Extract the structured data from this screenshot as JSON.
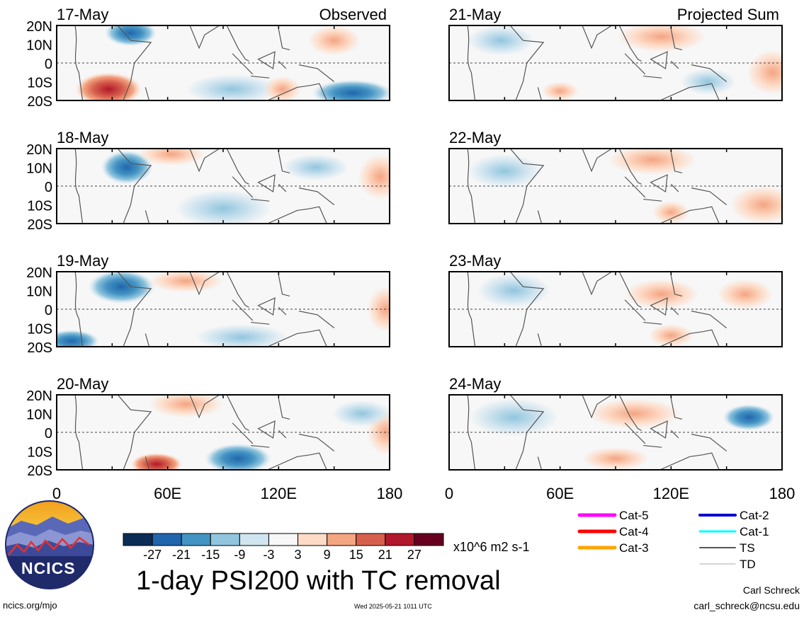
{
  "chart_data": {
    "type": "heatmap",
    "title": "1-day PSI200 with TC removal",
    "units": "x10^6 m2 s-1",
    "column_labels": [
      "Observed",
      "Projected Sum"
    ],
    "x_ticks": [
      "0",
      "60E",
      "120E",
      "180"
    ],
    "y_ticks": [
      "20N",
      "10N",
      "0",
      "10S",
      "20S"
    ],
    "xlim": [
      0,
      180
    ],
    "ylim": [
      -20,
      20
    ],
    "panels": [
      {
        "date": "17-May",
        "column": "Observed",
        "label": "Observed"
      },
      {
        "date": "18-May",
        "column": "Observed"
      },
      {
        "date": "19-May",
        "column": "Observed"
      },
      {
        "date": "20-May",
        "column": "Observed"
      },
      {
        "date": "21-May",
        "column": "Projected Sum",
        "label": "Projected Sum"
      },
      {
        "date": "22-May",
        "column": "Projected Sum"
      },
      {
        "date": "23-May",
        "column": "Projected Sum"
      },
      {
        "date": "24-May",
        "column": "Projected Sum"
      }
    ],
    "colorbar": {
      "ticks": [
        "-27",
        "-21",
        "-15",
        "-9",
        "-3",
        "3",
        "9",
        "15",
        "21",
        "27"
      ],
      "colors": [
        "#0b2d55",
        "#2166ac",
        "#4393c3",
        "#92c5de",
        "#d1e5f0",
        "#f7f7f7",
        "#fddbc7",
        "#f4a582",
        "#d6604d",
        "#b2182b",
        "#67001f"
      ]
    },
    "tc_legend": [
      {
        "label": "Cat-5",
        "color": "#ff00ff"
      },
      {
        "label": "Cat-4",
        "color": "#ff0000"
      },
      {
        "label": "Cat-3",
        "color": "#ffa500"
      },
      {
        "label": "Cat-2",
        "color": "#0000cc"
      },
      {
        "label": "Cat-1",
        "color": "#00ffff"
      },
      {
        "label": "TS",
        "color": "#555555"
      },
      {
        "label": "TD",
        "color": "#aaaaaa"
      }
    ]
  },
  "footer": {
    "site": "ncics.org/mjo",
    "timestamp": "Wed 2025-05-21 1011 UTC",
    "author": "Carl Schreck",
    "email": "carl_schreck@ncsu.edu"
  },
  "logo": {
    "text": "NCICS"
  }
}
